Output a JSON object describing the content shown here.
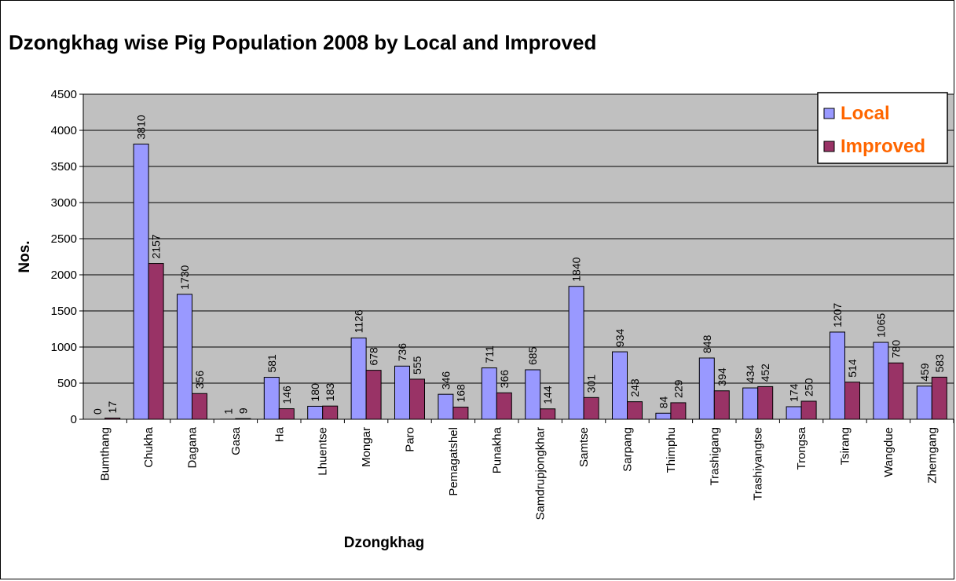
{
  "chart_data": {
    "type": "bar",
    "title": "Dzongkhag wise Pig Population 2008 by Local and Improved",
    "xlabel": "Dzongkhag",
    "ylabel": "Nos.",
    "ylim": [
      0,
      4500
    ],
    "yticks": [
      0,
      500,
      1000,
      1500,
      2000,
      2500,
      3000,
      3500,
      4000,
      4500
    ],
    "grid": true,
    "legend_position": "top-right",
    "categories": [
      "Bumthang",
      "Chukha",
      "Dagana",
      "Gasa",
      "Ha",
      "Lhuentse",
      "Mongar",
      "Paro",
      "Pemagatshel",
      "Punakha",
      "Samdrupjongkhar",
      "Samtse",
      "Sarpang",
      "Thimphu",
      "Trashigang",
      "Trashiyangtse",
      "Trongsa",
      "Tsirang",
      "Wangdue",
      "Zhemgang"
    ],
    "series": [
      {
        "name": "Local",
        "color": "#9999ff",
        "values": [
          0,
          3810,
          1730,
          1,
          581,
          180,
          1126,
          736,
          346,
          711,
          685,
          1840,
          934,
          84,
          848,
          434,
          174,
          1207,
          1065,
          459
        ]
      },
      {
        "name": "Improved",
        "color": "#993366",
        "values": [
          17,
          2157,
          356,
          9,
          146,
          183,
          678,
          555,
          168,
          366,
          144,
          301,
          243,
          229,
          394,
          452,
          250,
          514,
          780,
          583
        ]
      }
    ],
    "plot_background": "#c0c0c0"
  }
}
